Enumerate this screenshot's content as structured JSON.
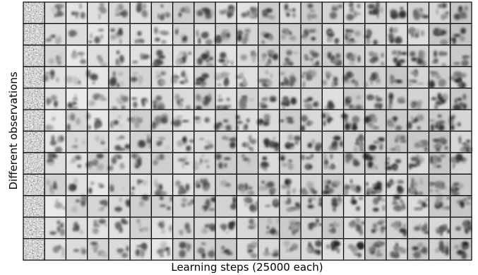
{
  "axes": {
    "x_label": "Learning steps (25000 each)",
    "y_label": "Different observations"
  }
}
